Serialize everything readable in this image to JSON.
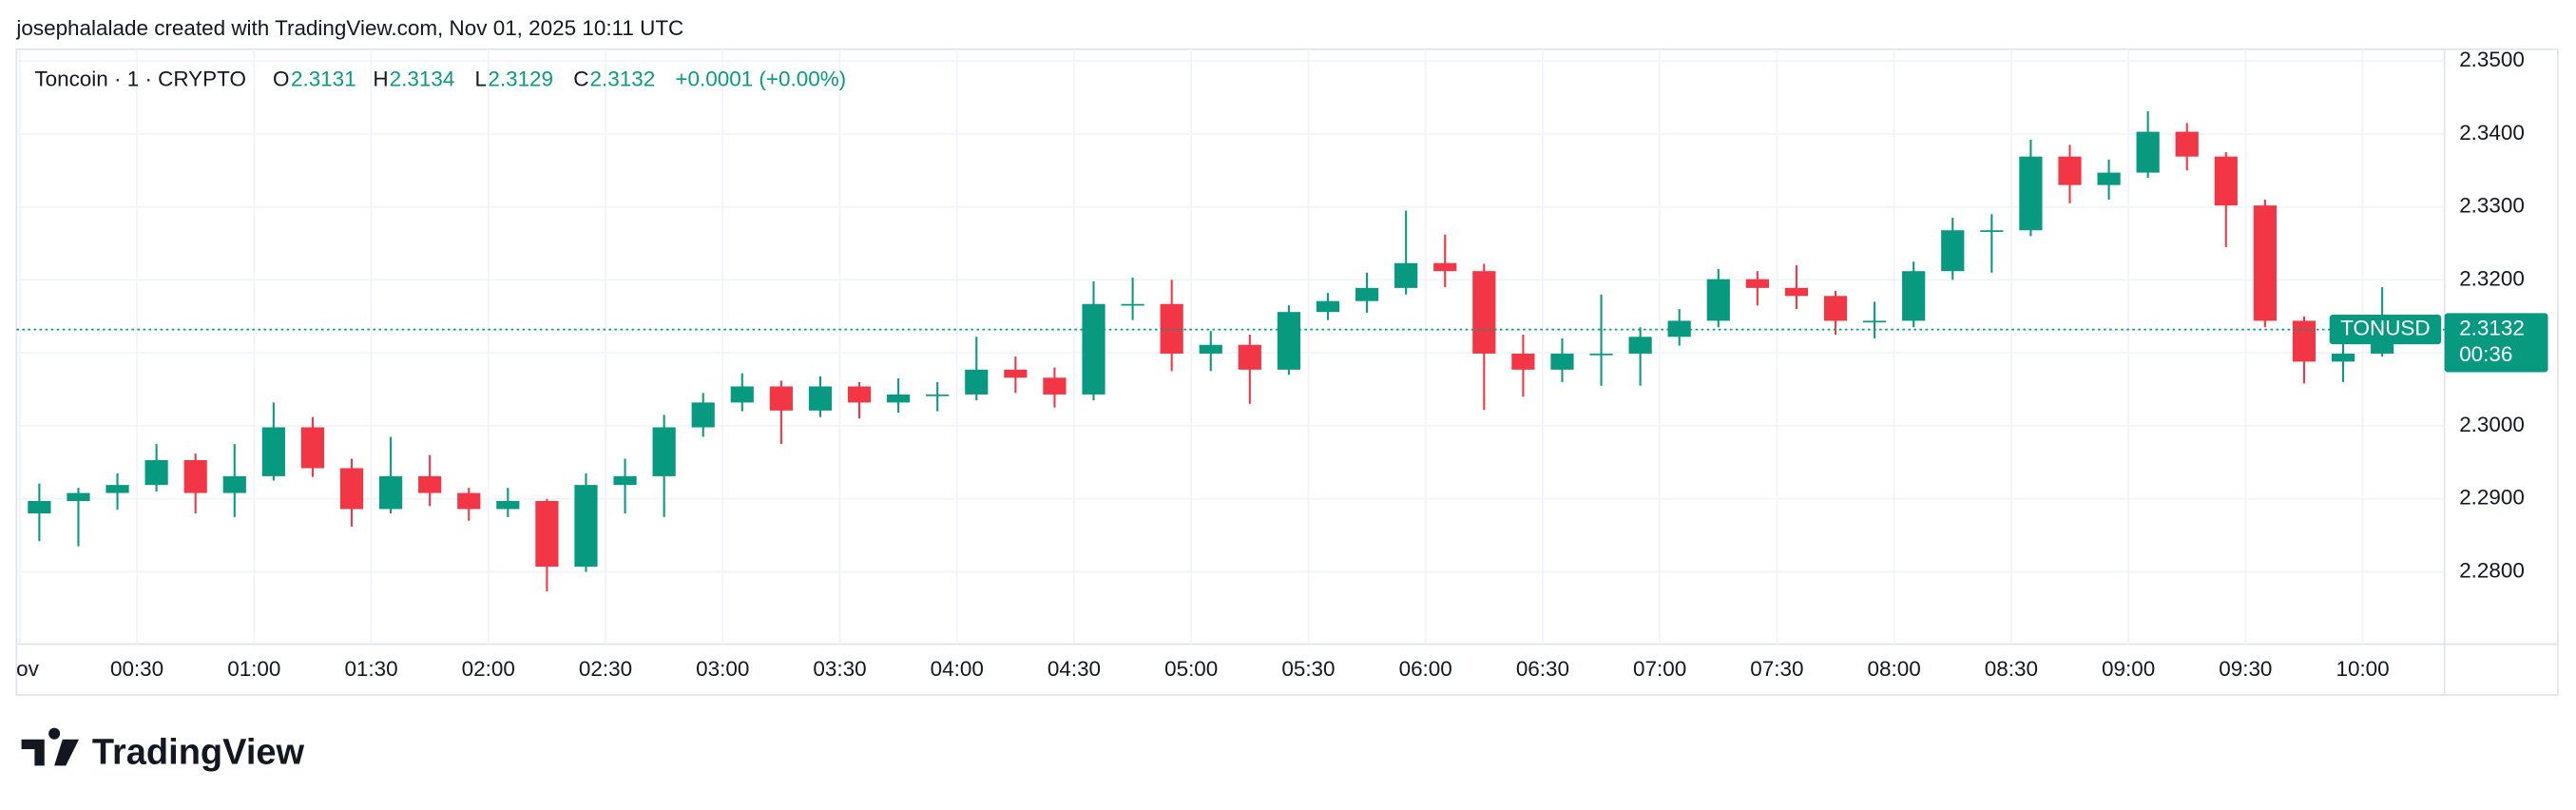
{
  "header": "josephalalade created with TradingView.com, Nov 01, 2025 10:11 UTC",
  "logo": "TradingView",
  "chart_data": {
    "type": "candlestick",
    "legend": {
      "symbol": "Toncoin · 1 · CRYPTO",
      "open_label": "O",
      "open": 2.3131,
      "high_label": "H",
      "high": 2.3134,
      "low_label": "L",
      "low": 2.3129,
      "close_label": "C",
      "close": 2.3132,
      "change": "+0.0001 (+0.00%)"
    },
    "symbol_tag": "TONUSD",
    "countdown": "00:36",
    "up_color": "#089981",
    "down_color": "#f23645",
    "grid": true,
    "x": [
      "00:00",
      "00:10",
      "00:20",
      "00:30",
      "00:40",
      "00:50",
      "01:00",
      "01:10",
      "01:20",
      "01:30",
      "01:40",
      "01:50",
      "02:00",
      "02:10",
      "02:20",
      "02:30",
      "02:40",
      "02:50",
      "03:00",
      "03:10",
      "03:20",
      "03:30",
      "03:40",
      "03:50",
      "04:00",
      "04:10",
      "04:20",
      "04:30",
      "04:40",
      "04:50",
      "05:00",
      "05:10",
      "05:20",
      "05:30",
      "05:40",
      "05:50",
      "06:00",
      "06:10",
      "06:20",
      "06:30",
      "06:40",
      "06:50",
      "07:00",
      "07:10",
      "07:20",
      "07:30",
      "07:40",
      "07:50",
      "08:00",
      "08:10",
      "08:20",
      "08:30",
      "08:40",
      "08:50",
      "09:00",
      "09:10",
      "09:20",
      "09:30",
      "09:40",
      "09:50",
      "10:00"
    ],
    "open": [
      2.288,
      2.2897,
      2.2908,
      2.2919,
      2.2953,
      2.2908,
      2.2931,
      2.2998,
      2.2942,
      2.2886,
      2.2931,
      2.2908,
      2.2886,
      2.2897,
      2.2807,
      2.2919,
      2.2931,
      2.2998,
      2.3032,
      2.3054,
      2.3021,
      2.3054,
      2.3032,
      2.3043,
      2.3043,
      2.3077,
      2.3066,
      2.3043,
      2.3167,
      2.3167,
      2.3099,
      2.3111,
      2.3077,
      2.3156,
      2.3171,
      2.3189,
      2.3223,
      2.3212,
      2.3099,
      2.3077,
      2.3099,
      2.3099,
      2.3122,
      2.3144,
      2.3201,
      2.3189,
      2.3178,
      2.3144,
      2.3144,
      2.3212,
      2.3268,
      2.3268,
      2.3369,
      2.333,
      2.3347,
      2.3403,
      2.3369,
      2.3302,
      2.3144,
      2.3088,
      2.3099
    ],
    "high": [
      2.2921,
      2.2915,
      2.2935,
      2.2975,
      2.2962,
      2.2975,
      2.3032,
      2.3012,
      2.2955,
      2.2985,
      2.296,
      2.2915,
      2.2915,
      2.29,
      2.2935,
      2.2955,
      2.3015,
      2.3045,
      2.3072,
      2.3062,
      2.3068,
      2.306,
      2.3065,
      2.306,
      2.3122,
      2.3095,
      2.308,
      2.3198,
      2.3203,
      2.32,
      2.313,
      2.3125,
      2.3165,
      2.3182,
      2.321,
      2.3295,
      2.3262,
      2.3222,
      2.3125,
      2.312,
      2.318,
      2.3135,
      2.316,
      2.3215,
      2.3212,
      2.322,
      2.3185,
      2.317,
      2.3225,
      2.3285,
      2.329,
      2.3392,
      2.3385,
      2.3365,
      2.3431,
      2.3415,
      2.3375,
      2.331,
      2.315,
      2.3125,
      2.319
    ],
    "low": [
      2.2842,
      2.2835,
      2.2885,
      2.291,
      2.288,
      2.2875,
      2.2925,
      2.293,
      2.2862,
      2.288,
      2.289,
      2.287,
      2.2875,
      2.2773,
      2.28,
      2.288,
      2.2875,
      2.2985,
      2.302,
      2.2975,
      2.3012,
      2.301,
      2.3018,
      2.302,
      2.3035,
      2.3045,
      2.3025,
      2.3035,
      2.3145,
      2.3075,
      2.3075,
      2.303,
      2.307,
      2.3145,
      2.3155,
      2.318,
      2.319,
      2.3022,
      2.304,
      2.306,
      2.3055,
      2.3055,
      2.311,
      2.3135,
      2.3165,
      2.316,
      2.3125,
      2.312,
      2.3135,
      2.32,
      2.321,
      2.326,
      2.3305,
      2.331,
      2.334,
      2.335,
      2.3245,
      2.3135,
      2.3058,
      2.306,
      2.3095
    ],
    "close": [
      2.2897,
      2.2908,
      2.2919,
      2.2953,
      2.2908,
      2.2931,
      2.2998,
      2.2942,
      2.2886,
      2.2931,
      2.2908,
      2.2886,
      2.2897,
      2.2807,
      2.2919,
      2.2931,
      2.2998,
      2.3032,
      2.3054,
      2.3021,
      2.3054,
      2.3032,
      2.3043,
      2.3043,
      2.3077,
      2.3066,
      2.3043,
      2.3167,
      2.3167,
      2.3099,
      2.3111,
      2.3077,
      2.3156,
      2.3171,
      2.3189,
      2.3223,
      2.3212,
      2.3099,
      2.3077,
      2.3099,
      2.3099,
      2.3122,
      2.3144,
      2.3201,
      2.3189,
      2.3178,
      2.3144,
      2.3144,
      2.3212,
      2.3268,
      2.3268,
      2.3369,
      2.333,
      2.3347,
      2.3403,
      2.3369,
      2.3302,
      2.3144,
      2.3088,
      2.3099,
      2.3132
    ],
    "ylim": [
      2.2701,
      2.3516
    ],
    "yticks": [
      {
        "value": 2.28,
        "label": "2.2800"
      },
      {
        "value": 2.29,
        "label": "2.2900"
      },
      {
        "value": 2.3,
        "label": "2.3000"
      },
      {
        "value": 2.31,
        "label": "2.3100"
      },
      {
        "value": 2.32,
        "label": "2.3200"
      },
      {
        "value": 2.33,
        "label": "2.3300"
      },
      {
        "value": 2.34,
        "label": "2.3400"
      },
      {
        "value": 2.35,
        "label": "2.3500"
      }
    ],
    "xticks": [
      {
        "value": "00:00",
        "label": "Nov"
      },
      "00:30",
      "01:00",
      "01:30",
      "02:00",
      "02:30",
      "03:00",
      "03:30",
      "04:00",
      "04:30",
      "05:00",
      "05:30",
      "06:00",
      "06:30",
      "07:00",
      "07:30",
      "08:00",
      "08:30",
      "09:00",
      "09:30",
      "10:00"
    ]
  }
}
